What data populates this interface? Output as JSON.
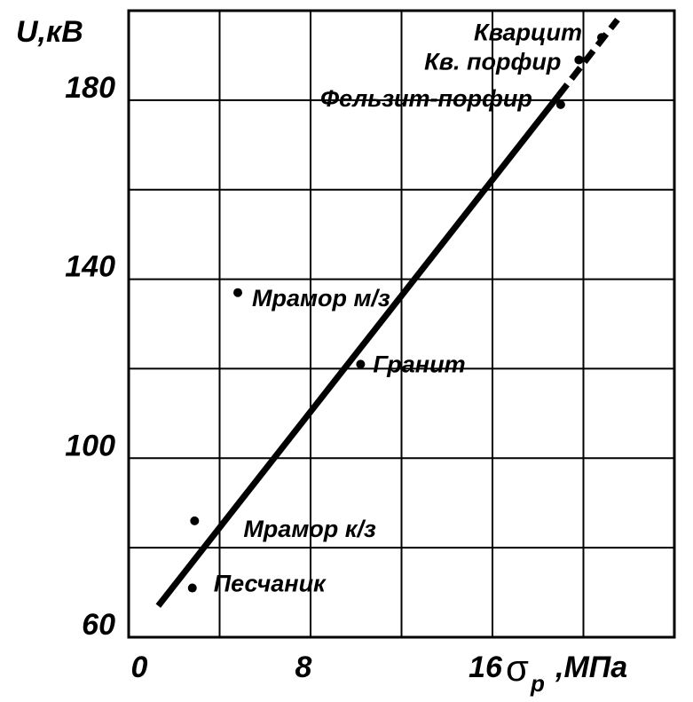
{
  "chart_data": {
    "type": "scatter",
    "ylabel": "U,кВ",
    "xlabel": "σ",
    "xlabel_subscript": "p",
    "xlabel_unit": ",МПа",
    "xlim": [
      0,
      24
    ],
    "xticks": [
      0,
      8,
      16
    ],
    "minor_xticks": [
      4,
      12,
      20
    ],
    "ylim": [
      60,
      200
    ],
    "yticks": [
      60,
      100,
      140,
      180
    ],
    "minor_yticks": [
      80,
      120,
      160
    ],
    "grid": true,
    "color": "#000000",
    "points": {
      "labels": [
        "Кварцит",
        "Кв. порфир",
        "Фельзит-порфир",
        "Мрамор м/з",
        "Гранит",
        "Мрамор к/з",
        "Песчаник"
      ],
      "x": [
        20.8,
        19.8,
        19.0,
        4.8,
        10.2,
        2.9,
        2.8
      ],
      "values": [
        194,
        189,
        179,
        137,
        121,
        86,
        71
      ]
    },
    "trend": {
      "x": [
        1.3,
        18.9,
        21.5
      ],
      "values": [
        67,
        181,
        198
      ],
      "dashed_from": 1
    }
  }
}
